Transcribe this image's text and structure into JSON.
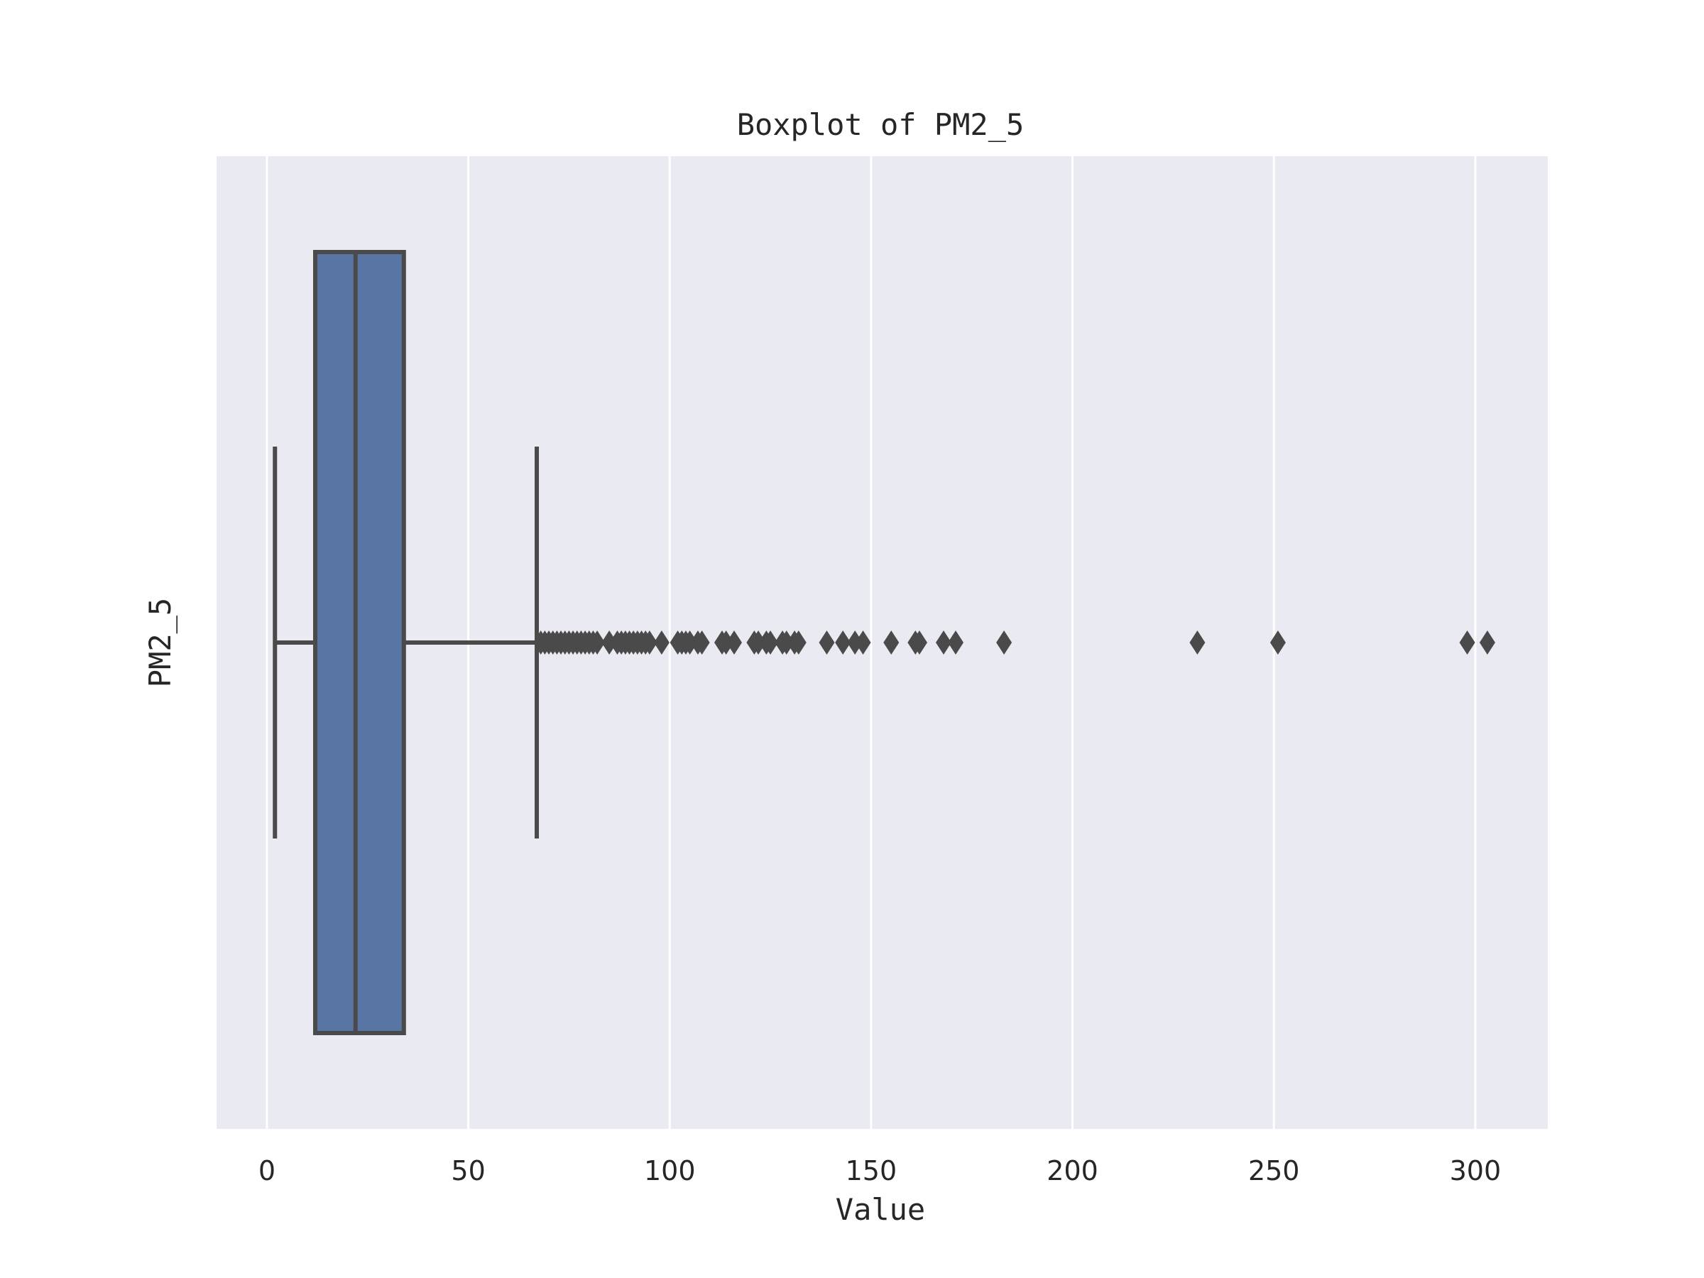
{
  "chart_data": {
    "type": "boxplot",
    "orientation": "horizontal",
    "title": "Boxplot of PM2_5",
    "xlabel": "Value",
    "ylabel": "PM2_5",
    "xlim": [
      -12.5,
      318
    ],
    "xticks": [
      0,
      50,
      100,
      150,
      200,
      250,
      300
    ],
    "grid": true,
    "colors": {
      "background": "#EAEAF2",
      "grid": "#FFFFFF",
      "box_fill": "#5875A4",
      "line": "#4A4A4A"
    },
    "series": [
      {
        "category": "PM2_5",
        "whisker_low": 2,
        "q1": 12,
        "median": 22,
        "q3": 34,
        "whisker_high": 67,
        "outliers": [
          68,
          69,
          70,
          71,
          72,
          73,
          74,
          75,
          76,
          77,
          78,
          79,
          80,
          81,
          82,
          85,
          87,
          88,
          89,
          90,
          91,
          92,
          93,
          94,
          95,
          98,
          102,
          103,
          104,
          105,
          107,
          108,
          113,
          114,
          116,
          121,
          122,
          124,
          125,
          128,
          129,
          131,
          132,
          139,
          143,
          146,
          148,
          155,
          161,
          162,
          168,
          171,
          183,
          231,
          251,
          298,
          303
        ]
      }
    ]
  }
}
